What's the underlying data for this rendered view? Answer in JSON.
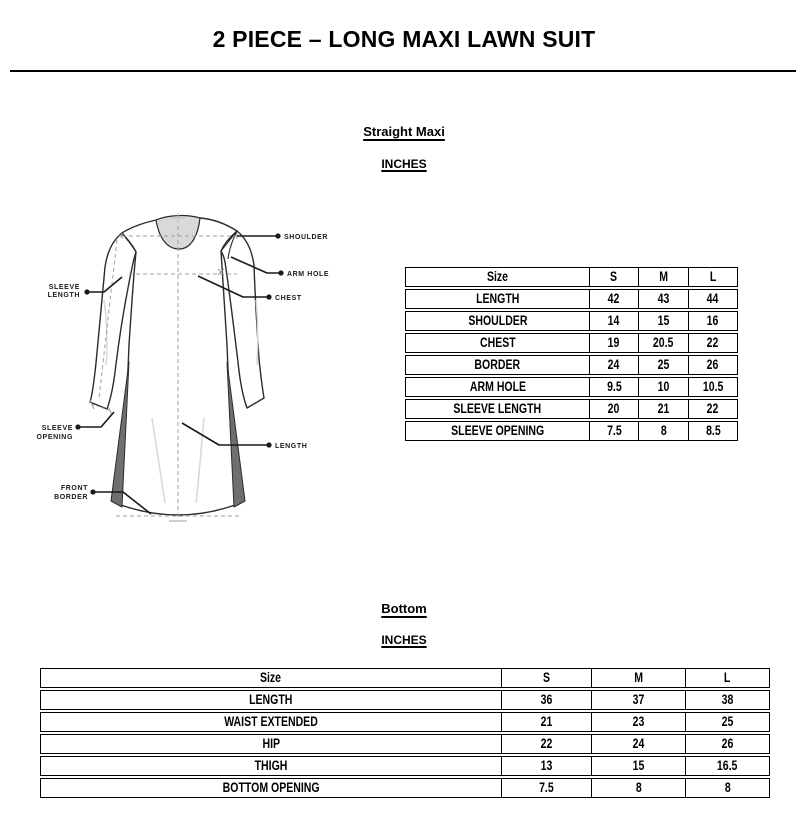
{
  "page": {
    "title": "2 PIECE – LONG MAXI LAWN SUIT"
  },
  "sections": {
    "top": {
      "heading": "Straight Maxi",
      "unit": "INCHES"
    },
    "bottom": {
      "heading": "Bottom",
      "unit": "INCHES"
    }
  },
  "diagram": {
    "callouts": {
      "shoulder": "SHOULDER",
      "arm_hole": "ARM HOLE",
      "chest": "CHEST",
      "sleeve_length_1": "SLEEVE",
      "sleeve_length_2": "LENGTH",
      "sleeve_opening_1": "SLEEVE",
      "sleeve_opening_2": "OPENING",
      "length": "LENGTH",
      "front_border_1": "FRONT",
      "front_border_2": "BORDER"
    }
  },
  "tables": [
    {
      "name": "straight-maxi-inches",
      "header": [
        "Size",
        "S",
        "M",
        "L"
      ],
      "rows": [
        [
          "LENGTH",
          "42",
          "43",
          "44"
        ],
        [
          "SHOULDER",
          "14",
          "15",
          "16"
        ],
        [
          "CHEST",
          "19",
          "20.5",
          "22"
        ],
        [
          "BORDER",
          "24",
          "25",
          "26"
        ],
        [
          "ARM HOLE",
          "9.5",
          "10",
          "10.5"
        ],
        [
          "SLEEVE LENGTH",
          "20",
          "21",
          "22"
        ],
        [
          "SLEEVE OPENING",
          "7.5",
          "8",
          "8.5"
        ]
      ]
    },
    {
      "name": "bottom-inches",
      "header": [
        "Size",
        "S",
        "M",
        "L"
      ],
      "rows": [
        [
          "LENGTH",
          "36",
          "37",
          "38"
        ],
        [
          "WAIST EXTENDED",
          "21",
          "23",
          "25"
        ],
        [
          "HIP",
          "22",
          "24",
          "26"
        ],
        [
          "THIGH",
          "13",
          "15",
          "16.5"
        ],
        [
          "BOTTOM OPENING",
          "7.5",
          "8",
          "8"
        ]
      ]
    }
  ],
  "colors": {
    "text": "#000000",
    "outline": "#2b2b2b",
    "dashed": "#a0a0a0",
    "side_panel": "#6f6f6f",
    "neckline": "#d9d9d9"
  }
}
